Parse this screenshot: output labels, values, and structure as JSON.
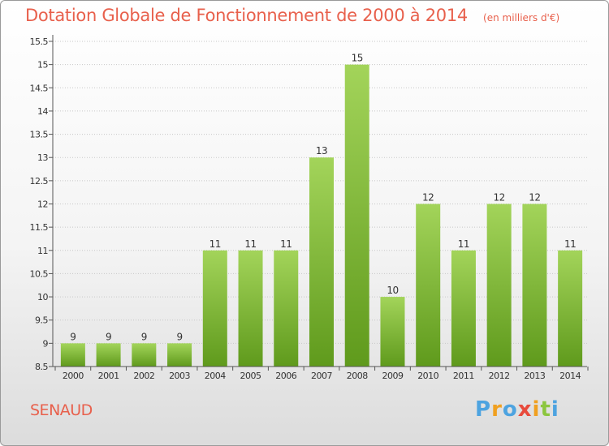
{
  "header": {
    "title": "Dotation Globale de Fonctionnement de 2000 à 2014",
    "unit": "(en milliers d'€)"
  },
  "footer": {
    "commune": "SENAUD",
    "logo_letters": [
      "P",
      "r",
      "o",
      "x",
      "i",
      "t",
      "i"
    ],
    "logo_colors": [
      "#4da3e0",
      "#f0a020",
      "#4da3e0",
      "#e84a3c",
      "#f0a020",
      "#8cc63f",
      "#4da3e0"
    ]
  },
  "colors": {
    "bar_light": "#a3d45a",
    "bar_dark": "#5f9a1c",
    "grid": "#c8c8c8",
    "axis": "#555555"
  },
  "chart_data": {
    "type": "bar",
    "categories": [
      "2000",
      "2001",
      "2002",
      "2003",
      "2004",
      "2005",
      "2006",
      "2007",
      "2008",
      "2009",
      "2010",
      "2011",
      "2012",
      "2013",
      "2014"
    ],
    "values": [
      9,
      9,
      9,
      9,
      11,
      11,
      11,
      13,
      15,
      10,
      12,
      11,
      12,
      12,
      11
    ],
    "data_labels": [
      "9",
      "9",
      "9",
      "9",
      "11",
      "11",
      "11",
      "13",
      "15",
      "10",
      "12",
      "11",
      "12",
      "12",
      "11"
    ],
    "yticks": [
      "8.5",
      "9",
      "9.5",
      "10",
      "10.5",
      "11",
      "11.5",
      "12",
      "12.5",
      "13",
      "13.5",
      "14",
      "14.5",
      "15",
      "15.5"
    ],
    "ylim": [
      8.5,
      15.5
    ],
    "grid": true,
    "title": "Dotation Globale de Fonctionnement de 2000 à 2014",
    "xlabel": "",
    "ylabel": ""
  }
}
